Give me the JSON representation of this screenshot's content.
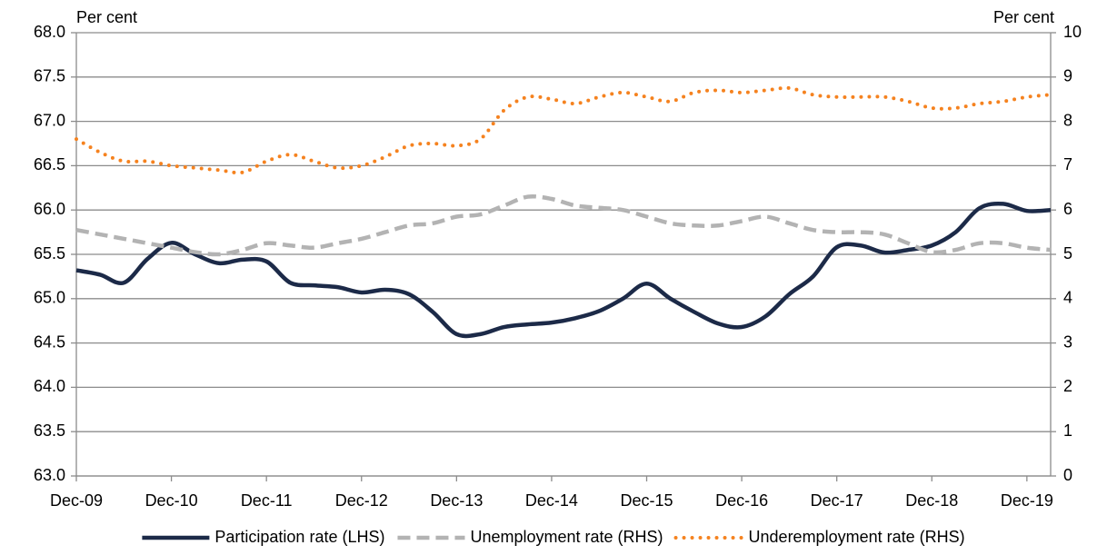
{
  "chart_data": {
    "type": "line",
    "y_label": "Per cent",
    "y2_label": "Per cent",
    "categories": [
      "Dec-09",
      null,
      null,
      null,
      "Dec-10",
      null,
      null,
      null,
      "Dec-11",
      null,
      null,
      null,
      "Dec-12",
      null,
      null,
      null,
      "Dec-13",
      null,
      null,
      null,
      "Dec-14",
      null,
      null,
      null,
      "Dec-15",
      null,
      null,
      null,
      "Dec-16",
      null,
      null,
      null,
      "Dec-17",
      null,
      null,
      null,
      "Dec-18",
      null,
      null,
      null,
      "Dec-19",
      null
    ],
    "ylim": [
      63,
      68
    ],
    "yticks": [
      {
        "value": 63,
        "label": "63.0"
      },
      {
        "value": 63.5,
        "label": "63.5"
      },
      {
        "value": 64,
        "label": "64.0"
      },
      {
        "value": 64.5,
        "label": "64.5"
      },
      {
        "value": 65,
        "label": "65.0"
      },
      {
        "value": 65.5,
        "label": "65.5"
      },
      {
        "value": 66,
        "label": "66.0"
      },
      {
        "value": 66.5,
        "label": "66.5"
      },
      {
        "value": 67,
        "label": "67.0"
      },
      {
        "value": 67.5,
        "label": "67.5"
      },
      {
        "value": 68,
        "label": "68.0"
      }
    ],
    "y2lim": [
      0,
      10
    ],
    "y2ticks": [
      0,
      1,
      2,
      3,
      4,
      5,
      6,
      7,
      8,
      9,
      10
    ],
    "grid": true,
    "legend": "bottom",
    "series": [
      {
        "name": "Participation rate (LHS)",
        "color": "#1c2a48",
        "style": "solid",
        "axis": "y",
        "values": [
          65.32,
          65.27,
          65.18,
          65.45,
          65.63,
          65.5,
          65.4,
          65.44,
          65.42,
          65.18,
          65.15,
          65.13,
          65.07,
          65.1,
          65.05,
          64.85,
          64.6,
          64.6,
          64.68,
          64.71,
          64.73,
          64.78,
          64.86,
          65.0,
          65.17,
          65.0,
          64.85,
          64.72,
          64.68,
          64.8,
          65.05,
          65.25,
          65.58,
          65.6,
          65.52,
          65.55,
          65.6,
          65.75,
          66.02,
          66.07,
          65.99,
          66.0
        ]
      },
      {
        "name": "Unemployment rate (RHS)",
        "color": "#b3b3b3",
        "style": "dashed",
        "axis": "y2",
        "values": [
          5.55,
          5.45,
          5.35,
          5.25,
          5.15,
          5.05,
          5.0,
          5.1,
          5.25,
          5.2,
          5.15,
          5.25,
          5.35,
          5.5,
          5.65,
          5.7,
          5.85,
          5.9,
          6.1,
          6.3,
          6.25,
          6.1,
          6.05,
          6.0,
          5.85,
          5.7,
          5.65,
          5.65,
          5.75,
          5.85,
          5.7,
          5.55,
          5.5,
          5.5,
          5.45,
          5.25,
          5.05,
          5.1,
          5.25,
          5.25,
          5.15,
          5.1
        ]
      },
      {
        "name": "Underemployment rate (RHS)",
        "color": "#f5821f",
        "style": "dotted",
        "axis": "y2",
        "values": [
          7.6,
          7.3,
          7.1,
          7.1,
          7.0,
          6.95,
          6.9,
          6.85,
          7.1,
          7.25,
          7.1,
          6.95,
          7.0,
          7.2,
          7.45,
          7.5,
          7.45,
          7.6,
          8.25,
          8.55,
          8.5,
          8.4,
          8.55,
          8.65,
          8.55,
          8.45,
          8.65,
          8.7,
          8.65,
          8.7,
          8.75,
          8.6,
          8.55,
          8.55,
          8.55,
          8.45,
          8.3,
          8.3,
          8.4,
          8.45,
          8.55,
          8.6
        ]
      }
    ]
  }
}
